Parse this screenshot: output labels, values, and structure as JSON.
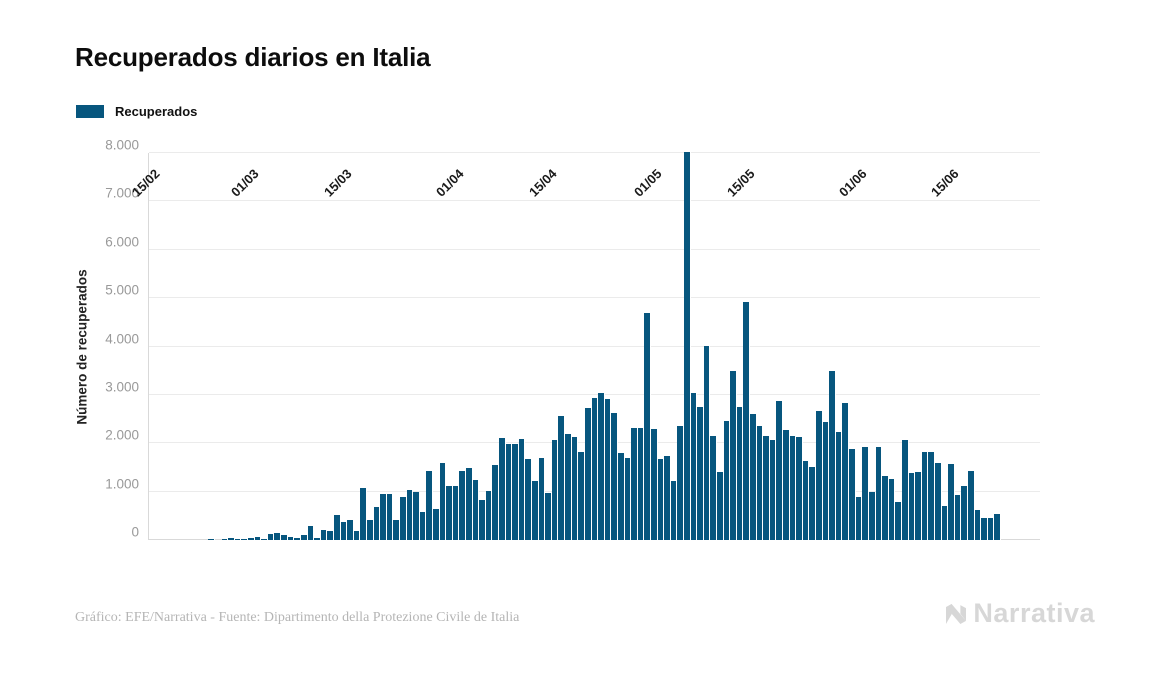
{
  "header": {
    "title": "Recuperados diarios en Italia"
  },
  "legend": {
    "label": "Recuperados"
  },
  "footer": {
    "credit": "Gráfico: EFE/Narrativa - Fuente: Dipartimento della Protezione Civile de Italia",
    "logo_text": "Narrativa"
  },
  "chart_data": {
    "type": "bar",
    "title": "Recuperados diarios en Italia",
    "xlabel": "",
    "ylabel": "Número de recuperados",
    "ylim": [
      0,
      8000
    ],
    "grid": true,
    "legend_position": "top-left",
    "bar_color": "#07567e",
    "yticks": [
      0,
      1000,
      2000,
      3000,
      4000,
      5000,
      6000,
      7000,
      8000
    ],
    "ytick_labels": [
      "0",
      "1.000",
      "2.000",
      "3.000",
      "4.000",
      "5.000",
      "6.000",
      "7.000",
      "8.000"
    ],
    "xtick_labels": [
      "15/02",
      "01/03",
      "15/03",
      "01/04",
      "15/04",
      "01/05",
      "15/05",
      "01/06",
      "15/06"
    ],
    "dates": [
      "15/02",
      "16/02",
      "17/02",
      "18/02",
      "19/02",
      "20/02",
      "21/02",
      "22/02",
      "23/02",
      "24/02",
      "25/02",
      "26/02",
      "27/02",
      "28/02",
      "29/02",
      "01/03",
      "02/03",
      "03/03",
      "04/03",
      "05/03",
      "06/03",
      "07/03",
      "08/03",
      "09/03",
      "10/03",
      "11/03",
      "12/03",
      "13/03",
      "14/03",
      "15/03",
      "16/03",
      "17/03",
      "18/03",
      "19/03",
      "20/03",
      "21/03",
      "22/03",
      "23/03",
      "24/03",
      "25/03",
      "26/03",
      "27/03",
      "28/03",
      "29/03",
      "30/03",
      "31/03",
      "01/04",
      "02/04",
      "03/04",
      "04/04",
      "05/04",
      "06/04",
      "07/04",
      "08/04",
      "09/04",
      "10/04",
      "11/04",
      "12/04",
      "13/04",
      "14/04",
      "15/04",
      "16/04",
      "17/04",
      "18/04",
      "19/04",
      "20/04",
      "21/04",
      "22/04",
      "23/04",
      "24/04",
      "25/04",
      "26/04",
      "27/04",
      "28/04",
      "29/04",
      "30/04",
      "01/05",
      "02/05",
      "03/05",
      "04/05",
      "05/05",
      "06/05",
      "07/05",
      "08/05",
      "09/05",
      "10/05",
      "11/05",
      "12/05",
      "13/05",
      "14/05",
      "15/05",
      "16/05",
      "17/05",
      "18/05",
      "19/05",
      "20/05",
      "21/05",
      "22/05",
      "23/05",
      "24/05",
      "25/05",
      "26/05",
      "27/05",
      "28/05",
      "29/05",
      "30/05",
      "31/05",
      "01/06",
      "02/06",
      "03/06",
      "04/06",
      "05/06",
      "06/06",
      "07/06",
      "08/06",
      "09/06",
      "10/06",
      "11/06",
      "12/06",
      "13/06",
      "14/06",
      "15/06",
      "16/06",
      "17/06",
      "18/06",
      "19/06",
      "20/06",
      "21/06",
      "22/06"
    ],
    "values": [
      0,
      0,
      0,
      0,
      0,
      0,
      0,
      0,
      0,
      1,
      0,
      2,
      42,
      1,
      4,
      33,
      66,
      11,
      116,
      138,
      109,
      66,
      33,
      102,
      280,
      41,
      213,
      181,
      527,
      369,
      414,
      192,
      1084,
      415,
      689,
      943,
      952,
      408,
      894,
      1036,
      999,
      589,
      1434,
      646,
      1590,
      1109,
      1118,
      1431,
      1480,
      1238,
      819,
      1022,
      1555,
      2099,
      1979,
      1985,
      2079,
      1677,
      1224,
      1695,
      962,
      2072,
      2563,
      2200,
      2128,
      1822,
      2723,
      2943,
      3033,
      2922,
      2622,
      1808,
      1696,
      2317,
      2311,
      4693,
      2304,
      1665,
      1740,
      1225,
      2352,
      8014,
      3031,
      2747,
      4008,
      2155,
      1401,
      2452,
      3502,
      2747,
      4917,
      2605,
      2366,
      2150,
      2075,
      2881,
      2278,
      2160,
      2120,
      1639,
      1502,
      2677,
      2443,
      3503,
      2240,
      2830,
      1874,
      890,
      1930,
      1000,
      1930,
      1320,
      1260,
      790,
      2060,
      1380,
      1410,
      1810,
      1810,
      1600,
      700,
      1570,
      930,
      1115,
      1430,
      620,
      450,
      455,
      530
    ]
  }
}
